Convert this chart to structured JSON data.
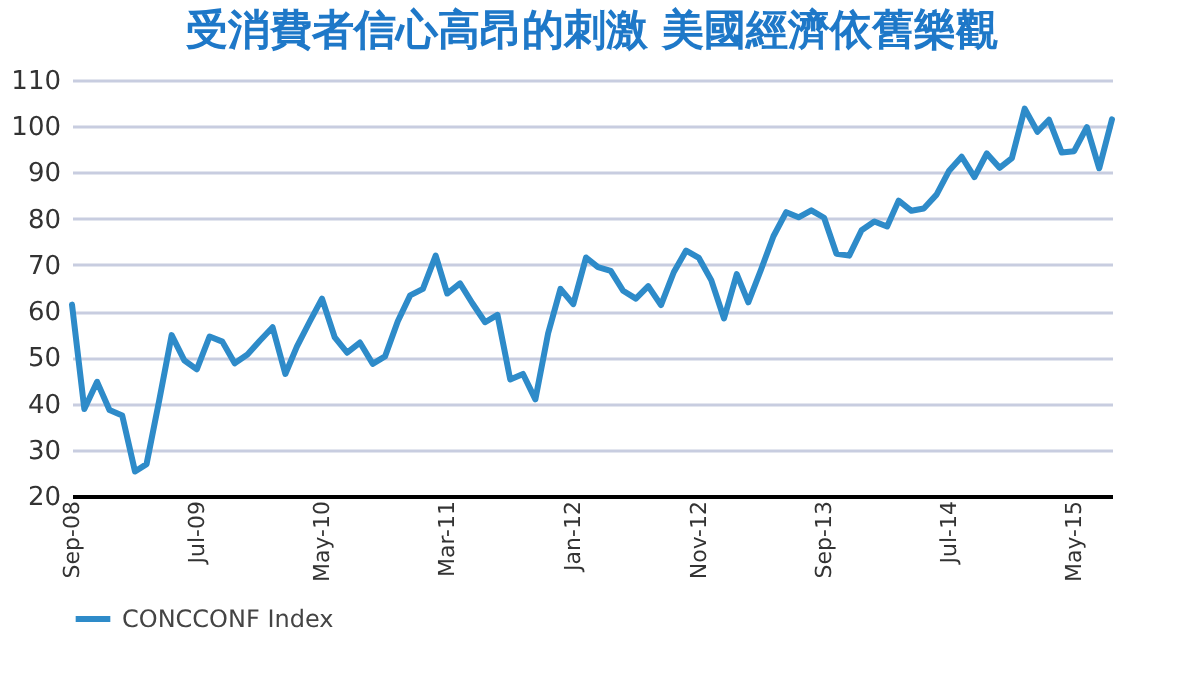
{
  "chart_data": {
    "type": "line",
    "title": "受消費者信心高昂的刺激 美國經濟依舊樂觀",
    "x": [
      "2008-09",
      "2008-10",
      "2008-11",
      "2008-12",
      "2009-01",
      "2009-02",
      "2009-03",
      "2009-04",
      "2009-05",
      "2009-06",
      "2009-07",
      "2009-08",
      "2009-09",
      "2009-10",
      "2009-11",
      "2009-12",
      "2010-01",
      "2010-02",
      "2010-03",
      "2010-04",
      "2010-05",
      "2010-06",
      "2010-07",
      "2010-08",
      "2010-09",
      "2010-10",
      "2010-11",
      "2010-12",
      "2011-01",
      "2011-02",
      "2011-03",
      "2011-04",
      "2011-05",
      "2011-06",
      "2011-07",
      "2011-08",
      "2011-09",
      "2011-10",
      "2011-11",
      "2011-12",
      "2012-01",
      "2012-02",
      "2012-03",
      "2012-04",
      "2012-05",
      "2012-06",
      "2012-07",
      "2012-08",
      "2012-09",
      "2012-10",
      "2012-11",
      "2012-12",
      "2013-01",
      "2013-02",
      "2013-03",
      "2013-04",
      "2013-05",
      "2013-06",
      "2013-07",
      "2013-08",
      "2013-09",
      "2013-10",
      "2013-11",
      "2013-12",
      "2014-01",
      "2014-02",
      "2014-03",
      "2014-04",
      "2014-05",
      "2014-06",
      "2014-07",
      "2014-08",
      "2014-09",
      "2014-10",
      "2014-11",
      "2014-12",
      "2015-01",
      "2015-02",
      "2015-03",
      "2015-04",
      "2015-05",
      "2015-06",
      "2015-07",
      "2015-08"
    ],
    "series": [
      {
        "name": "CONCCONF Index",
        "color": "#2e8bc9",
        "values": [
          61.4,
          38.8,
          44.7,
          38.6,
          37.4,
          25.3,
          26.9,
          40.8,
          54.8,
          49.3,
          47.4,
          54.5,
          53.4,
          48.7,
          50.6,
          53.6,
          56.5,
          46.4,
          52.3,
          57.7,
          62.7,
          54.3,
          51.0,
          53.2,
          48.6,
          50.2,
          57.8,
          63.4,
          64.8,
          72.0,
          63.8,
          66.0,
          61.7,
          57.6,
          59.2,
          45.2,
          46.4,
          40.9,
          55.2,
          64.8,
          61.5,
          71.6,
          69.5,
          68.7,
          64.4,
          62.7,
          65.4,
          61.3,
          68.4,
          73.1,
          71.5,
          66.7,
          58.4,
          68.0,
          61.9,
          69.0,
          76.2,
          81.4,
          80.3,
          81.8,
          80.2,
          72.4,
          72.0,
          77.5,
          79.4,
          78.3,
          83.9,
          81.7,
          82.2,
          85.2,
          90.3,
          93.4,
          89.0,
          94.1,
          91.0,
          93.1,
          103.8,
          98.8,
          101.4,
          94.3,
          94.6,
          99.8,
          90.9,
          101.5
        ]
      }
    ],
    "xlim": [
      "2008-09",
      "2015-08"
    ],
    "xticks": [
      {
        "value": "2008-09",
        "label": "Sep-08"
      },
      {
        "value": "2009-07",
        "label": "Jul-09"
      },
      {
        "value": "2010-05",
        "label": "May-10"
      },
      {
        "value": "2011-03",
        "label": "Mar-11"
      },
      {
        "value": "2012-01",
        "label": "Jan-12"
      },
      {
        "value": "2012-11",
        "label": "Nov-12"
      },
      {
        "value": "2013-09",
        "label": "Sep-13"
      },
      {
        "value": "2014-07",
        "label": "Jul-14"
      },
      {
        "value": "2015-05",
        "label": "May-15"
      }
    ],
    "ylim": [
      20,
      110
    ],
    "yticks": [
      20,
      30,
      40,
      50,
      60,
      70,
      80,
      90,
      100,
      110
    ],
    "grid": "y",
    "legend": "bottom",
    "line_style": "solid",
    "marker": "none"
  }
}
